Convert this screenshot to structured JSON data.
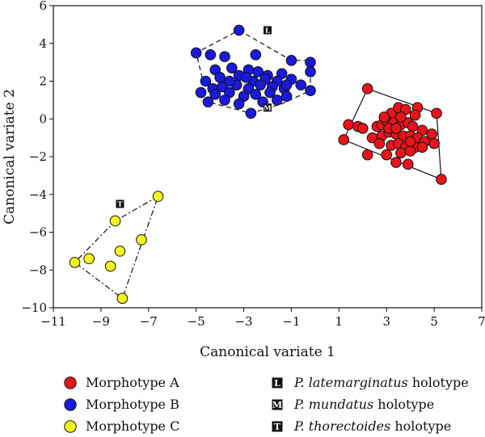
{
  "chart_data": {
    "type": "scatter",
    "xlabel": "Canonical variate 1",
    "ylabel": "Canonical variate 2",
    "xlim": [
      -11,
      7
    ],
    "ylim": [
      -10,
      6
    ],
    "xticks": [
      -11,
      -9,
      -7,
      -5,
      -3,
      -1,
      1,
      3,
      5,
      7
    ],
    "yticks": [
      -10,
      -8,
      -6,
      -4,
      -2,
      0,
      2,
      4,
      6
    ],
    "xtick_labels": [
      "−11",
      "−9",
      "−7",
      "−5",
      "−3",
      "−1",
      "1",
      "3",
      "5",
      "7"
    ],
    "ytick_labels": [
      "−10",
      "−8",
      "−6",
      "−4",
      "−2",
      "0",
      "2",
      "4",
      "6"
    ],
    "series": [
      {
        "name": "Morphotype A",
        "color": "#e8141b",
        "hull": "solid",
        "points": [
          [
            2.2,
            1.6
          ],
          [
            3.2,
            0.3
          ],
          [
            3.5,
            0.6
          ],
          [
            3.8,
            0.5
          ],
          [
            4.3,
            0.6
          ],
          [
            5.1,
            0.3
          ],
          [
            1.4,
            -0.3
          ],
          [
            1.8,
            -0.4
          ],
          [
            2.0,
            -0.5
          ],
          [
            2.6,
            -0.4
          ],
          [
            2.8,
            -0.3
          ],
          [
            3.0,
            -0.1
          ],
          [
            3.3,
            -0.2
          ],
          [
            3.6,
            -0.3
          ],
          [
            3.9,
            -0.2
          ],
          [
            4.1,
            -0.4
          ],
          [
            4.5,
            -0.6
          ],
          [
            4.9,
            -0.8
          ],
          [
            1.2,
            -1.1
          ],
          [
            2.4,
            -1.0
          ],
          [
            2.8,
            -0.9
          ],
          [
            3.1,
            -0.7
          ],
          [
            3.4,
            -0.8
          ],
          [
            3.7,
            -0.9
          ],
          [
            4.0,
            -0.9
          ],
          [
            4.3,
            -1.0
          ],
          [
            4.6,
            -1.2
          ],
          [
            5.0,
            -1.3
          ],
          [
            2.7,
            -1.3
          ],
          [
            3.2,
            -1.4
          ],
          [
            3.5,
            -1.3
          ],
          [
            3.8,
            -1.5
          ],
          [
            4.2,
            -1.5
          ],
          [
            4.5,
            -1.5
          ],
          [
            2.2,
            -1.9
          ],
          [
            3.0,
            -1.9
          ],
          [
            3.6,
            -1.8
          ],
          [
            4.0,
            -1.7
          ],
          [
            3.4,
            -2.3
          ],
          [
            3.9,
            -2.4
          ],
          [
            5.3,
            -3.2
          ],
          [
            3.1,
            -0.5
          ],
          [
            3.4,
            -0.5
          ],
          [
            2.9,
            0.1
          ],
          [
            3.6,
            0.1
          ],
          [
            4.2,
            0.2
          ],
          [
            4.0,
            -1.2
          ]
        ],
        "hull_points": [
          [
            2.2,
            1.6
          ],
          [
            5.1,
            0.3
          ],
          [
            5.3,
            -3.2
          ],
          [
            1.2,
            -1.1
          ]
        ]
      },
      {
        "name": "Morphotype B",
        "color": "#1a1adc",
        "hull": "dashed",
        "points": [
          [
            -3.2,
            4.7
          ],
          [
            -5.0,
            3.5
          ],
          [
            -4.4,
            3.4
          ],
          [
            -3.8,
            3.3
          ],
          [
            -2.5,
            3.4
          ],
          [
            -1.0,
            3.1
          ],
          [
            -0.2,
            3.0
          ],
          [
            -4.2,
            2.6
          ],
          [
            -3.5,
            2.7
          ],
          [
            -2.8,
            2.6
          ],
          [
            -2.0,
            2.3
          ],
          [
            -1.4,
            2.4
          ],
          [
            -0.2,
            2.5
          ],
          [
            -4.6,
            2.0
          ],
          [
            -4.0,
            2.2
          ],
          [
            -3.2,
            2.3
          ],
          [
            -2.6,
            2.0
          ],
          [
            -2.1,
            2.1
          ],
          [
            -1.6,
            2.0
          ],
          [
            -1.0,
            2.1
          ],
          [
            -4.3,
            1.6
          ],
          [
            -3.9,
            1.7
          ],
          [
            -3.3,
            1.8
          ],
          [
            -2.8,
            1.6
          ],
          [
            -2.3,
            1.8
          ],
          [
            -1.8,
            1.7
          ],
          [
            -1.3,
            1.6
          ],
          [
            -0.6,
            1.8
          ],
          [
            -4.8,
            1.4
          ],
          [
            -4.2,
            1.3
          ],
          [
            -3.6,
            1.4
          ],
          [
            -3.0,
            1.2
          ],
          [
            -2.5,
            1.3
          ],
          [
            -1.9,
            1.4
          ],
          [
            -1.2,
            1.2
          ],
          [
            -4.5,
            0.9
          ],
          [
            -3.8,
            1.0
          ],
          [
            -3.2,
            0.8
          ],
          [
            -2.2,
            0.9
          ],
          [
            -1.6,
            1.0
          ],
          [
            -0.2,
            1.5
          ],
          [
            -2.7,
            0.3
          ],
          [
            -3.6,
            2.0
          ],
          [
            -2.4,
            2.5
          ],
          [
            -1.2,
            1.8
          ],
          [
            -2.9,
            2.2
          ]
        ],
        "hull_points": [
          [
            -3.2,
            4.7
          ],
          [
            -1.0,
            3.1
          ],
          [
            -0.2,
            3.1
          ],
          [
            -0.2,
            1.5
          ],
          [
            -1.4,
            0.8
          ],
          [
            -2.7,
            0.3
          ],
          [
            -4.5,
            0.9
          ],
          [
            -5.0,
            3.5
          ]
        ]
      },
      {
        "name": "Morphotype C",
        "color": "#f5f51e",
        "hull": "dashdot",
        "points": [
          [
            -6.6,
            -4.1
          ],
          [
            -8.4,
            -5.4
          ],
          [
            -7.3,
            -6.4
          ],
          [
            -8.2,
            -7.0
          ],
          [
            -9.5,
            -7.4
          ],
          [
            -10.1,
            -7.6
          ],
          [
            -8.6,
            -7.8
          ],
          [
            -8.1,
            -9.5
          ]
        ],
        "hull_points": [
          [
            -6.6,
            -4.1
          ],
          [
            -8.4,
            -5.4
          ],
          [
            -10.1,
            -7.6
          ],
          [
            -8.1,
            -9.5
          ]
        ]
      }
    ],
    "holotypes": [
      {
        "glyph": "L",
        "name": "P. latemarginatus",
        "suffix": " holotype",
        "x": -2.0,
        "y": 4.7
      },
      {
        "glyph": "M",
        "name": "P. mundatus",
        "suffix": " holotype",
        "x": -2.0,
        "y": 0.6
      },
      {
        "glyph": "T",
        "name": "P. thorectoides",
        "suffix": " holotype",
        "x": -8.2,
        "y": -4.5
      }
    ]
  }
}
